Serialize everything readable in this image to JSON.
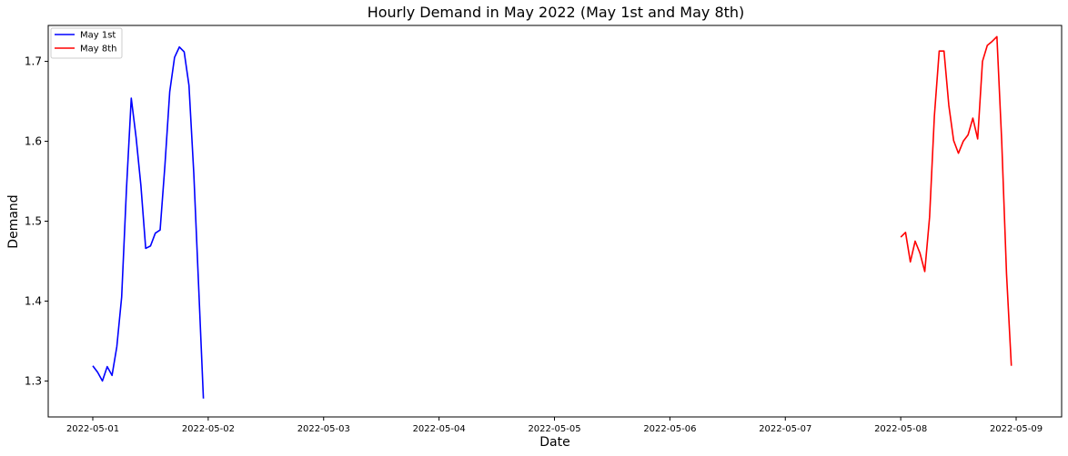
{
  "chart_data": {
    "type": "line",
    "title": "Hourly Demand in May 2022 (May 1st and May 8th)",
    "xlabel": "Date",
    "ylabel": "Demand",
    "x_ticks": [
      "2022-05-01",
      "2022-05-02",
      "2022-05-03",
      "2022-05-04",
      "2022-05-05",
      "2022-05-06",
      "2022-05-07",
      "2022-05-08",
      "2022-05-09"
    ],
    "x_start": "2022-05-01 00:00",
    "x_end": "2022-05-09 00:00",
    "ylim": [
      1.255,
      1.745
    ],
    "y_ticks": [
      1.3,
      1.4,
      1.5,
      1.6,
      1.7
    ],
    "grid": false,
    "legend": "upper-left",
    "series": [
      {
        "name": "May 1st",
        "color": "#0000ff",
        "x": [
          "2022-05-01 00:00",
          "2022-05-01 01:00",
          "2022-05-01 02:00",
          "2022-05-01 03:00",
          "2022-05-01 04:00",
          "2022-05-01 05:00",
          "2022-05-01 06:00",
          "2022-05-01 07:00",
          "2022-05-01 08:00",
          "2022-05-01 09:00",
          "2022-05-01 10:00",
          "2022-05-01 11:00",
          "2022-05-01 12:00",
          "2022-05-01 13:00",
          "2022-05-01 14:00",
          "2022-05-01 15:00",
          "2022-05-01 16:00",
          "2022-05-01 17:00",
          "2022-05-01 18:00",
          "2022-05-01 19:00",
          "2022-05-01 20:00",
          "2022-05-01 21:00",
          "2022-05-01 22:00",
          "2022-05-01 23:00"
        ],
        "y": [
          1.319,
          1.311,
          1.3,
          1.318,
          1.307,
          1.343,
          1.405,
          1.54,
          1.654,
          1.605,
          1.545,
          1.466,
          1.469,
          1.485,
          1.489,
          1.57,
          1.662,
          1.705,
          1.718,
          1.712,
          1.67,
          1.56,
          1.42,
          1.278
        ]
      },
      {
        "name": "May 8th",
        "color": "#ff0000",
        "x": [
          "2022-05-08 00:00",
          "2022-05-08 01:00",
          "2022-05-08 02:00",
          "2022-05-08 03:00",
          "2022-05-08 04:00",
          "2022-05-08 05:00",
          "2022-05-08 06:00",
          "2022-05-08 07:00",
          "2022-05-08 08:00",
          "2022-05-08 09:00",
          "2022-05-08 10:00",
          "2022-05-08 11:00",
          "2022-05-08 12:00",
          "2022-05-08 13:00",
          "2022-05-08 14:00",
          "2022-05-08 15:00",
          "2022-05-08 16:00",
          "2022-05-08 17:00",
          "2022-05-08 18:00",
          "2022-05-08 19:00",
          "2022-05-08 20:00",
          "2022-05-08 21:00",
          "2022-05-08 22:00",
          "2022-05-08 23:00"
        ],
        "y": [
          1.48,
          1.486,
          1.449,
          1.475,
          1.46,
          1.437,
          1.505,
          1.632,
          1.713,
          1.713,
          1.645,
          1.601,
          1.585,
          1.6,
          1.608,
          1.629,
          1.603,
          1.7,
          1.72,
          1.725,
          1.731,
          1.6,
          1.434,
          1.319
        ]
      }
    ]
  }
}
